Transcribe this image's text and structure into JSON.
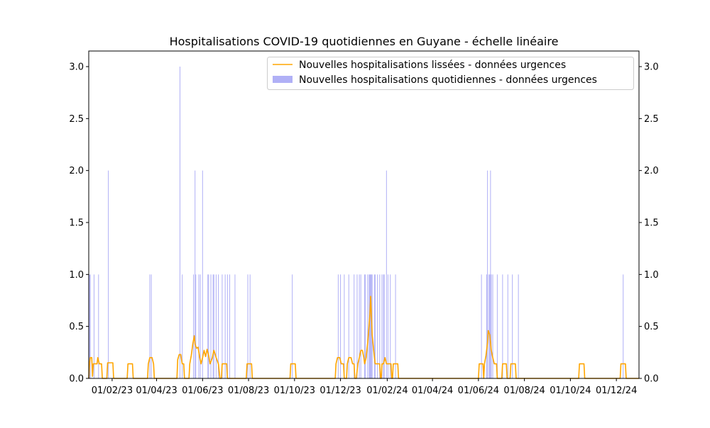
{
  "chart_data": {
    "type": "bar",
    "title": "Hospitalisations COVID-19 quotidiennes en Guyane - échelle linéaire",
    "xlabel": "",
    "ylabel": "",
    "x_range": [
      "2023-01-01",
      "2024-12-31"
    ],
    "ylim": [
      0,
      3.15
    ],
    "y_ticks": [
      "0.0",
      "0.5",
      "1.0",
      "1.5",
      "2.0",
      "2.5",
      "3.0"
    ],
    "x_ticks": [
      {
        "date": "2023-02-01",
        "label": "01/02/23"
      },
      {
        "date": "2023-04-01",
        "label": "01/04/23"
      },
      {
        "date": "2023-06-01",
        "label": "01/06/23"
      },
      {
        "date": "2023-08-01",
        "label": "01/08/23"
      },
      {
        "date": "2023-10-01",
        "label": "01/10/23"
      },
      {
        "date": "2023-12-01",
        "label": "01/12/23"
      },
      {
        "date": "2024-02-01",
        "label": "01/02/24"
      },
      {
        "date": "2024-04-01",
        "label": "01/04/24"
      },
      {
        "date": "2024-06-01",
        "label": "01/06/24"
      },
      {
        "date": "2024-08-01",
        "label": "01/08/24"
      },
      {
        "date": "2024-10-01",
        "label": "01/10/24"
      },
      {
        "date": "2024-12-01",
        "label": "01/12/24"
      }
    ],
    "grid": false,
    "legend_position": "top-right",
    "colors": {
      "bars": "#b0b0f6",
      "line": "#ffa500"
    },
    "series": [
      {
        "name": "Nouvelles hospitalisations lissées - données urgences",
        "type": "line",
        "values": [
          [
            "2023-01-01",
            0
          ],
          [
            "2023-01-02",
            0.14
          ],
          [
            "2023-01-03",
            0.2
          ],
          [
            "2023-01-05",
            0.2
          ],
          [
            "2023-01-06",
            0.02
          ],
          [
            "2023-01-07",
            0.14
          ],
          [
            "2023-01-12",
            0.14
          ],
          [
            "2023-01-13",
            0.2
          ],
          [
            "2023-01-15",
            0.14
          ],
          [
            "2023-01-18",
            0.14
          ],
          [
            "2023-01-19",
            0
          ],
          [
            "2023-01-25",
            0
          ],
          [
            "2023-01-26",
            0.15
          ],
          [
            "2023-02-02",
            0.15
          ],
          [
            "2023-02-03",
            0
          ],
          [
            "2023-02-21",
            0
          ],
          [
            "2023-02-22",
            0.14
          ],
          [
            "2023-02-28",
            0.14
          ],
          [
            "2023-03-01",
            0
          ],
          [
            "2023-03-20",
            0
          ],
          [
            "2023-03-21",
            0.14
          ],
          [
            "2023-03-23",
            0.2
          ],
          [
            "2023-03-26",
            0.2
          ],
          [
            "2023-03-28",
            0.14
          ],
          [
            "2023-03-29",
            0
          ],
          [
            "2023-04-28",
            0
          ],
          [
            "2023-04-29",
            0.18
          ],
          [
            "2023-05-01",
            0.23
          ],
          [
            "2023-05-03",
            0.23
          ],
          [
            "2023-05-05",
            0.14
          ],
          [
            "2023-05-07",
            0.14
          ],
          [
            "2023-05-08",
            0
          ],
          [
            "2023-05-14",
            0
          ],
          [
            "2023-05-15",
            0.14
          ],
          [
            "2023-05-17",
            0.22
          ],
          [
            "2023-05-19",
            0.33
          ],
          [
            "2023-05-21",
            0.41
          ],
          [
            "2023-05-22",
            0.33
          ],
          [
            "2023-05-24",
            0.29
          ],
          [
            "2023-05-26",
            0.3
          ],
          [
            "2023-05-28",
            0.21
          ],
          [
            "2023-05-30",
            0.14
          ],
          [
            "2023-06-01",
            0.2
          ],
          [
            "2023-06-03",
            0.27
          ],
          [
            "2023-06-05",
            0.21
          ],
          [
            "2023-06-07",
            0.28
          ],
          [
            "2023-06-09",
            0.22
          ],
          [
            "2023-06-11",
            0.14
          ],
          [
            "2023-06-14",
            0.2
          ],
          [
            "2023-06-16",
            0.27
          ],
          [
            "2023-06-19",
            0.2
          ],
          [
            "2023-06-22",
            0.14
          ],
          [
            "2023-06-24",
            0
          ],
          [
            "2023-06-26",
            0
          ],
          [
            "2023-06-27",
            0.14
          ],
          [
            "2023-07-03",
            0.14
          ],
          [
            "2023-07-04",
            0
          ],
          [
            "2023-07-29",
            0
          ],
          [
            "2023-07-30",
            0.14
          ],
          [
            "2023-08-05",
            0.14
          ],
          [
            "2023-08-06",
            0
          ],
          [
            "2023-09-25",
            0
          ],
          [
            "2023-09-26",
            0.14
          ],
          [
            "2023-10-02",
            0.14
          ],
          [
            "2023-10-03",
            0
          ],
          [
            "2023-11-24",
            0
          ],
          [
            "2023-11-25",
            0.14
          ],
          [
            "2023-11-27",
            0.2
          ],
          [
            "2023-11-30",
            0.2
          ],
          [
            "2023-12-02",
            0.14
          ],
          [
            "2023-12-05",
            0.14
          ],
          [
            "2023-12-06",
            0
          ],
          [
            "2023-12-09",
            0
          ],
          [
            "2023-12-10",
            0.14
          ],
          [
            "2023-12-12",
            0.2
          ],
          [
            "2023-12-15",
            0.2
          ],
          [
            "2023-12-17",
            0.14
          ],
          [
            "2023-12-19",
            0.14
          ],
          [
            "2023-12-20",
            0
          ],
          [
            "2023-12-22",
            0
          ],
          [
            "2023-12-24",
            0.14
          ],
          [
            "2023-12-26",
            0.2
          ],
          [
            "2023-12-28",
            0.27
          ],
          [
            "2023-12-30",
            0.27
          ],
          [
            "2024-01-01",
            0.2
          ],
          [
            "2024-01-02",
            0.14
          ],
          [
            "2024-01-04",
            0.2
          ],
          [
            "2024-01-06",
            0.34
          ],
          [
            "2024-01-08",
            0.52
          ],
          [
            "2024-01-09",
            0.62
          ],
          [
            "2024-01-10",
            0.79
          ],
          [
            "2024-01-11",
            0.62
          ],
          [
            "2024-01-12",
            0.42
          ],
          [
            "2024-01-14",
            0.27
          ],
          [
            "2024-01-16",
            0.14
          ],
          [
            "2024-01-18",
            0.14
          ],
          [
            "2024-01-20",
            0.14
          ],
          [
            "2024-01-22",
            0.14
          ],
          [
            "2024-01-23",
            0
          ],
          [
            "2024-01-24",
            0
          ],
          [
            "2024-01-25",
            0.14
          ],
          [
            "2024-01-27",
            0.14
          ],
          [
            "2024-01-29",
            0.2
          ],
          [
            "2024-01-31",
            0.14
          ],
          [
            "2024-02-06",
            0.14
          ],
          [
            "2024-02-07",
            0
          ],
          [
            "2024-02-08",
            0
          ],
          [
            "2024-02-09",
            0.14
          ],
          [
            "2024-02-15",
            0.14
          ],
          [
            "2024-02-16",
            0
          ],
          [
            "2024-06-01",
            0
          ],
          [
            "2024-06-02",
            0.14
          ],
          [
            "2024-06-07",
            0.14
          ],
          [
            "2024-06-08",
            0
          ],
          [
            "2024-06-09",
            0.14
          ],
          [
            "2024-06-11",
            0.22
          ],
          [
            "2024-06-13",
            0.34
          ],
          [
            "2024-06-14",
            0.46
          ],
          [
            "2024-06-16",
            0.42
          ],
          [
            "2024-06-18",
            0.27
          ],
          [
            "2024-06-20",
            0.2
          ],
          [
            "2024-06-22",
            0.14
          ],
          [
            "2024-06-25",
            0.14
          ],
          [
            "2024-06-26",
            0
          ],
          [
            "2024-07-02",
            0
          ],
          [
            "2024-07-03",
            0.14
          ],
          [
            "2024-07-08",
            0.14
          ],
          [
            "2024-07-09",
            0
          ],
          [
            "2024-07-13",
            0
          ],
          [
            "2024-07-14",
            0.14
          ],
          [
            "2024-07-20",
            0.14
          ],
          [
            "2024-07-21",
            0
          ],
          [
            "2024-10-12",
            0
          ],
          [
            "2024-10-13",
            0.14
          ],
          [
            "2024-10-19",
            0.14
          ],
          [
            "2024-10-20",
            0
          ],
          [
            "2024-12-06",
            0
          ],
          [
            "2024-12-07",
            0.14
          ],
          [
            "2024-12-13",
            0.14
          ],
          [
            "2024-12-14",
            0
          ],
          [
            "2024-12-31",
            0
          ]
        ]
      },
      {
        "name": "Nouvelles hospitalisations quotidiennes - données urgences",
        "type": "bar",
        "values": [
          [
            "2023-01-02",
            1
          ],
          [
            "2023-01-03",
            1
          ],
          [
            "2023-01-08",
            1
          ],
          [
            "2023-01-14",
            1
          ],
          [
            "2023-01-27",
            2
          ],
          [
            "2023-03-23",
            1
          ],
          [
            "2023-03-25",
            1
          ],
          [
            "2023-05-02",
            3
          ],
          [
            "2023-05-05",
            1
          ],
          [
            "2023-05-20",
            1
          ],
          [
            "2023-05-22",
            2
          ],
          [
            "2023-05-23",
            1
          ],
          [
            "2023-05-27",
            1
          ],
          [
            "2023-05-29",
            1
          ],
          [
            "2023-06-01",
            2
          ],
          [
            "2023-06-08",
            1
          ],
          [
            "2023-06-09",
            1
          ],
          [
            "2023-06-12",
            1
          ],
          [
            "2023-06-15",
            1
          ],
          [
            "2023-06-16",
            1
          ],
          [
            "2023-06-19",
            1
          ],
          [
            "2023-06-22",
            1
          ],
          [
            "2023-06-27",
            1
          ],
          [
            "2023-07-01",
            1
          ],
          [
            "2023-07-04",
            1
          ],
          [
            "2023-07-07",
            1
          ],
          [
            "2023-07-14",
            1
          ],
          [
            "2023-07-31",
            1
          ],
          [
            "2023-08-03",
            1
          ],
          [
            "2023-09-28",
            1
          ],
          [
            "2023-11-28",
            1
          ],
          [
            "2023-12-01",
            1
          ],
          [
            "2023-12-06",
            1
          ],
          [
            "2023-12-12",
            1
          ],
          [
            "2023-12-19",
            1
          ],
          [
            "2023-12-23",
            1
          ],
          [
            "2023-12-26",
            1
          ],
          [
            "2023-12-28",
            1
          ],
          [
            "2024-01-02",
            1
          ],
          [
            "2024-01-03",
            1
          ],
          [
            "2024-01-06",
            1
          ],
          [
            "2024-01-08",
            1
          ],
          [
            "2024-01-09",
            1
          ],
          [
            "2024-01-10",
            1
          ],
          [
            "2024-01-11",
            1
          ],
          [
            "2024-01-12",
            1
          ],
          [
            "2024-01-15",
            1
          ],
          [
            "2024-01-16",
            1
          ],
          [
            "2024-01-19",
            1
          ],
          [
            "2024-01-22",
            1
          ],
          [
            "2024-01-31",
            2
          ],
          [
            "2024-01-25",
            1
          ],
          [
            "2024-01-27",
            1
          ],
          [
            "2024-01-28",
            1
          ],
          [
            "2024-02-02",
            1
          ],
          [
            "2024-02-05",
            1
          ],
          [
            "2024-02-12",
            1
          ],
          [
            "2024-06-05",
            1
          ],
          [
            "2024-06-12",
            1
          ],
          [
            "2024-06-13",
            2
          ],
          [
            "2024-06-15",
            1
          ],
          [
            "2024-06-16",
            1
          ],
          [
            "2024-06-17",
            2
          ],
          [
            "2024-06-18",
            1
          ],
          [
            "2024-06-20",
            1
          ],
          [
            "2024-06-26",
            1
          ],
          [
            "2024-07-03",
            1
          ],
          [
            "2024-07-10",
            1
          ],
          [
            "2024-07-16",
            1
          ],
          [
            "2024-07-24",
            1
          ],
          [
            "2024-12-10",
            1
          ]
        ]
      }
    ]
  }
}
